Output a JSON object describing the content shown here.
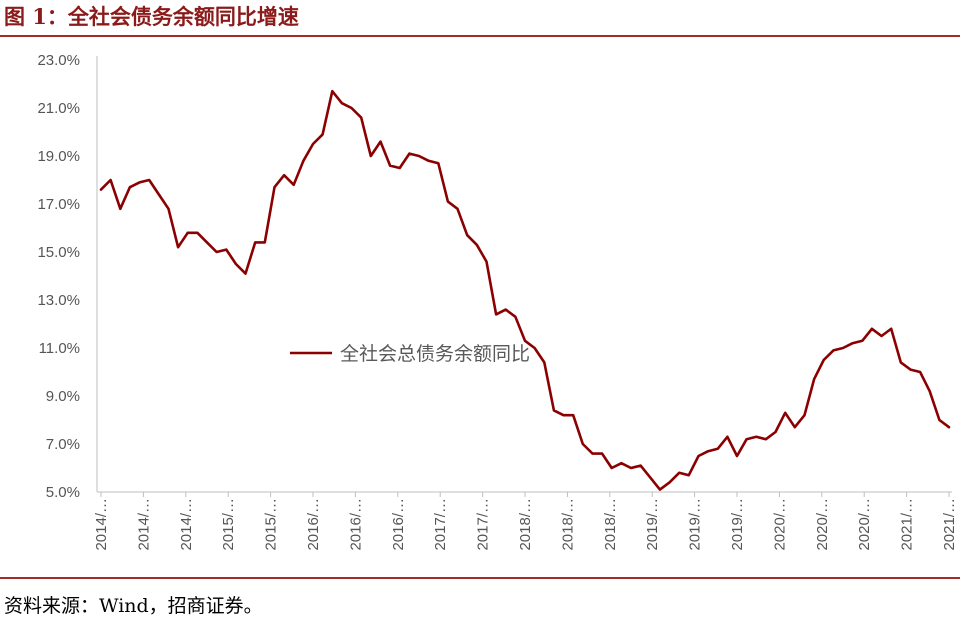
{
  "title": "图 1：全社会债务余额同比增速",
  "source": "资料来源：Wind，招商证券。",
  "colors": {
    "series": "#8b0000",
    "accent": "#a52a2a",
    "axis": "#bfbfbf"
  },
  "chart_data": {
    "type": "line",
    "ylim": [
      5.0,
      23.0
    ],
    "yticks": [
      "5.0%",
      "7.0%",
      "9.0%",
      "11.0%",
      "13.0%",
      "15.0%",
      "17.0%",
      "19.0%",
      "21.0%",
      "23.0%"
    ],
    "xticks": [
      "2014/…",
      "2014/…",
      "2014/…",
      "2015/…",
      "2015/…",
      "2016/…",
      "2016/…",
      "2016/…",
      "2017/…",
      "2017/…",
      "2018/…",
      "2018/…",
      "2018/…",
      "2019/…",
      "2019/…",
      "2019/…",
      "2020/…",
      "2020/…",
      "2020/…",
      "2021/…",
      "2021/…"
    ],
    "legend_position": "center",
    "series": [
      {
        "name": "全社会总债务余额同比",
        "values": [
          17.6,
          18.0,
          16.8,
          17.7,
          17.9,
          18.0,
          17.4,
          16.8,
          15.2,
          15.8,
          15.8,
          15.4,
          15.0,
          15.1,
          14.5,
          14.1,
          15.4,
          15.4,
          17.7,
          18.2,
          17.8,
          18.8,
          19.5,
          19.9,
          21.7,
          21.2,
          21.0,
          20.6,
          19.0,
          19.6,
          18.6,
          18.5,
          19.1,
          19.0,
          18.8,
          18.7,
          17.1,
          16.8,
          15.7,
          15.3,
          14.6,
          12.4,
          12.6,
          12.3,
          11.3,
          11.0,
          10.4,
          8.4,
          8.2,
          8.2,
          7.0,
          6.6,
          6.6,
          6.0,
          6.2,
          6.0,
          6.1,
          5.6,
          5.1,
          5.4,
          5.8,
          5.7,
          6.5,
          6.7,
          6.8,
          7.3,
          6.5,
          7.2,
          7.3,
          7.2,
          7.5,
          8.3,
          7.7,
          8.2,
          9.7,
          10.5,
          10.9,
          11.0,
          11.2,
          11.3,
          11.8,
          11.5,
          11.8,
          10.4,
          10.1,
          10.0,
          9.2,
          8.0,
          7.7
        ]
      }
    ]
  }
}
